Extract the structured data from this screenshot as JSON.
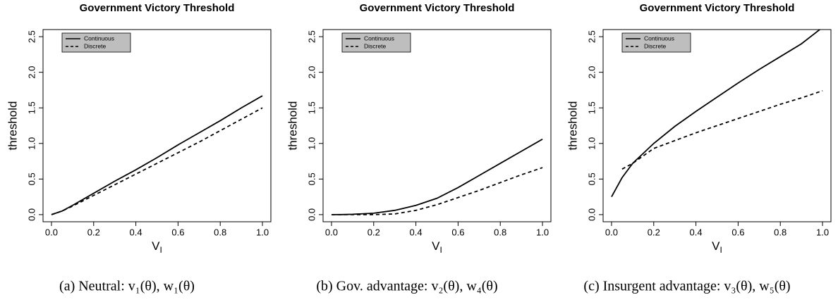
{
  "chart_data": [
    {
      "type": "line",
      "title": "Government Victory Threshold",
      "ylabel": "threshold",
      "xlabel": {
        "base": "V",
        "sub": "I"
      },
      "caption": "(a) Neutral: v₁(θ), w₁(θ)",
      "x": [
        0,
        0.05,
        0.1,
        0.2,
        0.3,
        0.4,
        0.5,
        0.6,
        0.7,
        0.8,
        0.9,
        1.0
      ],
      "series": [
        {
          "name": "Continuous",
          "color": "#000000",
          "dash": false,
          "values": [
            0,
            0.05,
            0.13,
            0.3,
            0.47,
            0.63,
            0.8,
            0.98,
            1.15,
            1.32,
            1.5,
            1.67
          ]
        },
        {
          "name": "Discrete",
          "color": "#000000",
          "dash": true,
          "values": [
            0,
            0.05,
            0.12,
            0.27,
            0.42,
            0.57,
            0.72,
            0.87,
            1.02,
            1.18,
            1.34,
            1.5
          ]
        }
      ],
      "xlim": [
        -0.04,
        1.04
      ],
      "ylim": [
        -0.1,
        2.6
      ],
      "xticks": [
        {
          "value": 0,
          "label": "0.0"
        },
        0.2,
        0.4,
        0.6,
        0.8,
        {
          "value": 1,
          "label": "1.0"
        }
      ],
      "yticks": [
        {
          "value": 0,
          "label": "0.0"
        },
        0.5,
        {
          "value": 1,
          "label": "1.0"
        },
        1.5,
        {
          "value": 2,
          "label": "2.0"
        },
        2.5
      ],
      "legend": "top-left"
    },
    {
      "type": "line",
      "title": "Government Victory Threshold",
      "ylabel": "threshold",
      "xlabel": {
        "base": "V",
        "sub": "I"
      },
      "caption": "(b) Gov. advantage: v₂(θ), w₄(θ)",
      "x": [
        0,
        0.05,
        0.1,
        0.2,
        0.3,
        0.4,
        0.5,
        0.6,
        0.7,
        0.8,
        0.9,
        1.0
      ],
      "series": [
        {
          "name": "Continuous",
          "color": "#000000",
          "dash": false,
          "values": [
            0,
            0.001,
            0.005,
            0.02,
            0.06,
            0.13,
            0.23,
            0.38,
            0.55,
            0.72,
            0.89,
            1.06
          ]
        },
        {
          "name": "Discrete",
          "color": "#000000",
          "dash": true,
          "values": [
            0,
            0,
            0,
            0,
            0.01,
            0.06,
            0.14,
            0.24,
            0.34,
            0.45,
            0.56,
            0.66
          ]
        }
      ],
      "xlim": [
        -0.04,
        1.04
      ],
      "ylim": [
        -0.1,
        2.6
      ],
      "xticks": [
        {
          "value": 0,
          "label": "0.0"
        },
        0.2,
        0.4,
        0.6,
        0.8,
        {
          "value": 1,
          "label": "1.0"
        }
      ],
      "yticks": [
        {
          "value": 0,
          "label": "0.0"
        },
        0.5,
        {
          "value": 1,
          "label": "1.0"
        },
        1.5,
        {
          "value": 2,
          "label": "2.0"
        },
        2.5
      ],
      "legend": "top-left"
    },
    {
      "type": "line",
      "title": "Government Victory Threshold",
      "ylabel": "threshold",
      "xlabel": {
        "base": "V",
        "sub": "I"
      },
      "caption": "(c) Insurgent advantage: v₃(θ), w₅(θ)",
      "x": [
        0,
        0.05,
        0.1,
        0.2,
        0.3,
        0.4,
        0.5,
        0.6,
        0.7,
        0.8,
        0.9,
        1.0
      ],
      "series": [
        {
          "name": "Continuous",
          "color": "#000000",
          "dash": false,
          "values": [
            0.25,
            0.52,
            0.72,
            1.0,
            1.24,
            1.45,
            1.65,
            1.85,
            2.04,
            2.22,
            2.4,
            2.63
          ]
        },
        {
          "name": "Discrete",
          "color": "#000000",
          "dash": true,
          "values": [
            null,
            0.64,
            0.72,
            0.93,
            1.04,
            1.15,
            1.25,
            1.35,
            1.45,
            1.55,
            1.64,
            1.74
          ]
        }
      ],
      "xlim": [
        -0.04,
        1.04
      ],
      "ylim": [
        -0.1,
        2.6
      ],
      "xticks": [
        {
          "value": 0,
          "label": "0.0"
        },
        0.2,
        0.4,
        0.6,
        0.8,
        {
          "value": 1,
          "label": "1.0"
        }
      ],
      "yticks": [
        {
          "value": 0,
          "label": "0.0"
        },
        0.5,
        {
          "value": 1,
          "label": "1.0"
        },
        1.5,
        {
          "value": 2,
          "label": "2.0"
        },
        2.5
      ],
      "legend": "top-left"
    }
  ]
}
